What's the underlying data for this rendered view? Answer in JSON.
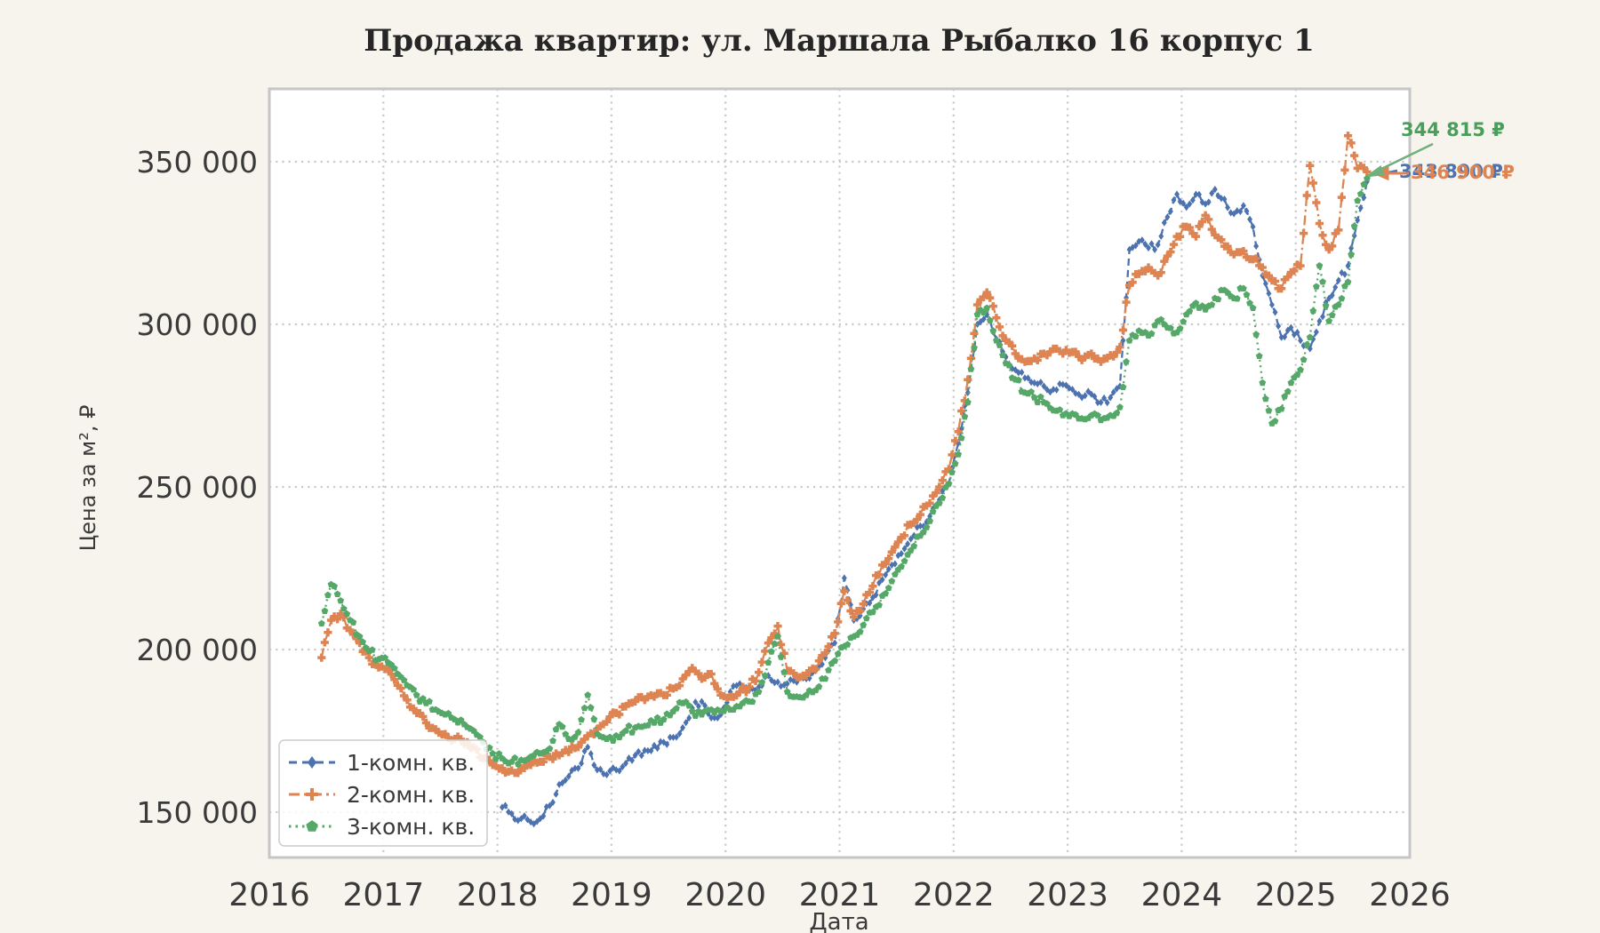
{
  "title": "Продажа квартир: ул. Маршала Рыбалко 16 корпус 1",
  "axes": {
    "xlabel": "Дата",
    "ylabel": "Цена за м², ₽",
    "x_ticks": [
      {
        "value": 2016,
        "label": "2016"
      },
      {
        "value": 2017,
        "label": "2017"
      },
      {
        "value": 2018,
        "label": "2018"
      },
      {
        "value": 2019,
        "label": "2019"
      },
      {
        "value": 2020,
        "label": "2020"
      },
      {
        "value": 2021,
        "label": "2021"
      },
      {
        "value": 2022,
        "label": "2022"
      },
      {
        "value": 2023,
        "label": "2023"
      },
      {
        "value": 2024,
        "label": "2024"
      },
      {
        "value": 2025,
        "label": "2025"
      },
      {
        "value": 2026,
        "label": "2026"
      }
    ],
    "y_ticks": [
      {
        "value": 150000,
        "label": "150 000"
      },
      {
        "value": 200000,
        "label": "200 000"
      },
      {
        "value": 250000,
        "label": "250 000"
      },
      {
        "value": 300000,
        "label": "300 000"
      },
      {
        "value": 350000,
        "label": "350 000"
      }
    ]
  },
  "legend": [
    {
      "label": "1-комн. кв.",
      "color": "#4c72b0",
      "linestyle": "dashed",
      "marker": "diamond"
    },
    {
      "label": "2-комн. кв.",
      "color": "#dd8452",
      "linestyle": "dashdot",
      "marker": "plus"
    },
    {
      "label": "3-комн. кв.",
      "color": "#55a868",
      "linestyle": "dotted",
      "marker": "pentagon"
    }
  ],
  "annotations": [
    {
      "series": "1-комн. кв.",
      "text": "343 890 ₽",
      "color": "#4c72b0"
    },
    {
      "series": "2-комн. кв.",
      "text": "346 900 ₽",
      "color": "#dd8452"
    },
    {
      "series": "3-комн. кв.",
      "text": "344 815 ₽",
      "color": "#55a868"
    }
  ],
  "colors": {
    "background": "#f6f4ec",
    "plot_background": "#ffffff",
    "grid": "#c9c9c9",
    "spine": "#c6c6c6",
    "tick_text": "#3a3a3a",
    "series_blue": "#4c72b0",
    "series_orange": "#dd8452",
    "series_green": "#55a868"
  },
  "chart_data": {
    "type": "line",
    "title": "Продажа квартир: ул. Маршала Рыбалко 16 корпус 1",
    "xlabel": "Дата",
    "ylabel": "Цена за м², ₽",
    "xlim": [
      2016,
      2026
    ],
    "ylim": [
      136000,
      372500
    ],
    "grid": true,
    "legend_position": "lower left",
    "x_unit": "decimal_year_monthly_samples",
    "series": [
      {
        "name": "1-комн. кв.",
        "color": "#4c72b0",
        "linestyle": "dashed",
        "marker": "diamond",
        "start_year": 2018,
        "start_month": 1,
        "final_value_label": "343 890 ₽",
        "values": [
          151500,
          149500,
          148000,
          147000,
          148000,
          152000,
          158500,
          161000,
          163500,
          170000,
          163000,
          161500,
          163000,
          165000,
          167500,
          169000,
          170500,
          171500,
          173000,
          176000,
          182000,
          184000,
          179000,
          180000,
          187000,
          189500,
          187500,
          188500,
          192000,
          190000,
          189500,
          190000,
          191000,
          193500,
          197500,
          202000,
          222000,
          209000,
          212500,
          216000,
          221500,
          226000,
          229500,
          234000,
          238000,
          241000,
          246000,
          251000,
          263500,
          279000,
          300000,
          303000,
          295500,
          290000,
          286000,
          283500,
          282000,
          281000,
          280000,
          281500,
          280000,
          277500,
          278500,
          276000,
          277500,
          281000,
          323000,
          325500,
          323500,
          324500,
          333000,
          340000,
          336000,
          340000,
          337000,
          341500,
          338500,
          334000,
          336500,
          330000,
          315000,
          306000,
          296000,
          299000,
          295000,
          292500,
          301000,
          308000,
          313500,
          318000,
          332000,
          343890
        ]
      },
      {
        "name": "2-комн. кв.",
        "color": "#dd8452",
        "linestyle": "dashdot",
        "marker": "plus",
        "start_year": 2016,
        "start_month": 6,
        "final_value_label": "346 900 ₽",
        "values": [
          197500,
          209000,
          211000,
          206000,
          202000,
          197500,
          194500,
          194000,
          189000,
          184500,
          180500,
          177500,
          175500,
          174000,
          172500,
          171000,
          170000,
          166500,
          164500,
          163500,
          162800,
          163500,
          164500,
          165500,
          167000,
          167500,
          168500,
          170000,
          173500,
          175500,
          177800,
          180500,
          182500,
          184000,
          184500,
          185500,
          186000,
          188000,
          191000,
          194300,
          191000,
          192500,
          186000,
          185500,
          187000,
          188500,
          193000,
          202000,
          207200,
          193500,
          191500,
          192000,
          194000,
          199000,
          205000,
          218000,
          210000,
          214000,
          219500,
          226000,
          230000,
          234500,
          238500,
          241500,
          245000,
          250000,
          255500,
          267000,
          283000,
          306000,
          309800,
          302000,
          295000,
          291000,
          288500,
          289500,
          291000,
          292500,
          291000,
          291500,
          289000,
          291000,
          288500,
          290500,
          293000,
          312000,
          315500,
          317500,
          315000,
          321000,
          327000,
          330000,
          327000,
          333500,
          327500,
          324000,
          321500,
          322500,
          320000,
          317500,
          313500,
          311000,
          316000,
          318000,
          348800,
          331000,
          323000,
          329000,
          358000,
          348000,
          346900
        ]
      },
      {
        "name": "3-комн. кв.",
        "color": "#55a868",
        "linestyle": "dotted",
        "marker": "pentagon",
        "start_year": 2016,
        "start_month": 6,
        "final_value_label": "344 815 ₽",
        "values": [
          208000,
          220000,
          215000,
          209000,
          204000,
          199500,
          197000,
          196000,
          192500,
          189000,
          186000,
          183500,
          181500,
          180000,
          178500,
          177000,
          175000,
          171500,
          168000,
          166500,
          165500,
          166000,
          167000,
          168000,
          169500,
          177000,
          172500,
          174500,
          186000,
          174000,
          172500,
          173500,
          175000,
          176000,
          176500,
          177500,
          178500,
          181000,
          183500,
          181000,
          180000,
          181500,
          181000,
          181500,
          182500,
          184000,
          187000,
          196000,
          204000,
          187000,
          185500,
          186000,
          187500,
          191000,
          196500,
          201000,
          204000,
          207500,
          211500,
          216500,
          221000,
          225500,
          230500,
          235000,
          239500,
          245000,
          251000,
          260000,
          276000,
          303000,
          305000,
          295000,
          288000,
          283000,
          279000,
          277500,
          276000,
          273500,
          272000,
          272500,
          271000,
          272000,
          270500,
          272000,
          274500,
          295000,
          298000,
          296500,
          301000,
          299000,
          297500,
          303000,
          306500,
          304500,
          308000,
          310500,
          308000,
          311000,
          305000,
          282000,
          269500,
          274000,
          282000,
          286000,
          296000,
          318000,
          301000,
          306000,
          313000,
          338000,
          344815
        ]
      }
    ]
  }
}
